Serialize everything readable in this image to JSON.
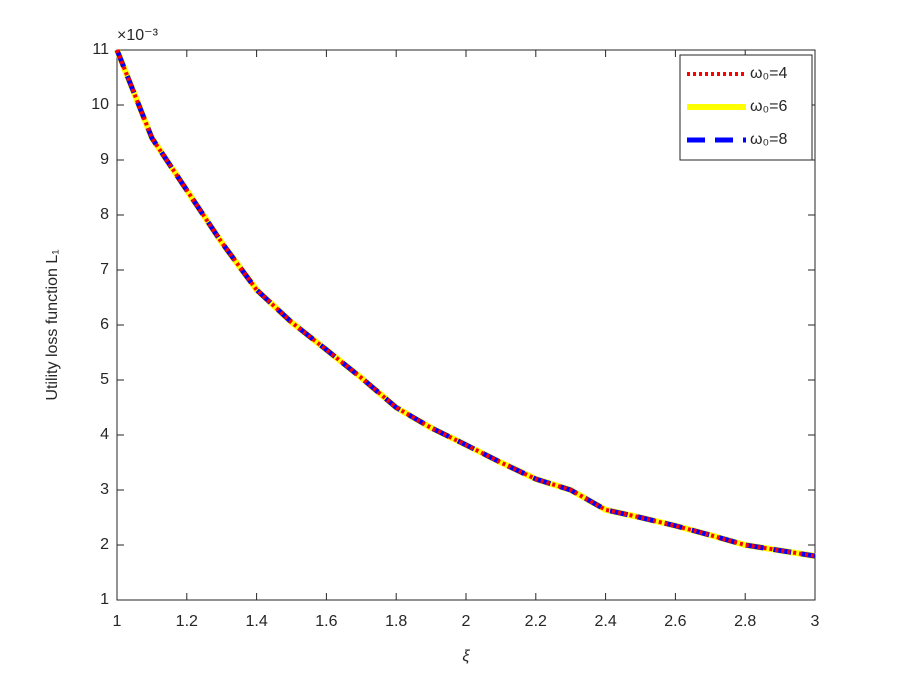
{
  "chart_data": {
    "type": "line",
    "x": [
      1,
      1.1,
      1.2,
      1.3,
      1.4,
      1.5,
      1.6,
      1.7,
      1.8,
      1.9,
      2,
      2.1,
      2.2,
      2.3,
      2.4,
      2.5,
      2.6,
      2.7,
      2.8,
      2.9,
      3
    ],
    "series": [
      {
        "name": "ω₀=4",
        "color": "#ff0000",
        "dash": "3,3",
        "width": 4,
        "values": [
          11,
          9.4,
          8.45,
          7.5,
          6.64,
          6.05,
          5.55,
          5.04,
          4.5,
          4.13,
          3.82,
          3.5,
          3.2,
          3.0,
          2.64,
          2.5,
          2.35,
          2.18,
          2.0,
          1.9,
          1.8
        ]
      },
      {
        "name": "ω₀=6",
        "color": "#ffff00",
        "dash": "none",
        "width": 6,
        "values": [
          11,
          9.4,
          8.45,
          7.5,
          6.64,
          6.05,
          5.55,
          5.04,
          4.5,
          4.13,
          3.82,
          3.5,
          3.2,
          3.0,
          2.64,
          2.5,
          2.35,
          2.18,
          2.0,
          1.9,
          1.8
        ]
      },
      {
        "name": "ω₀=8",
        "color": "#0000ff",
        "dash": "18,10",
        "width": 5,
        "values": [
          11,
          9.4,
          8.45,
          7.5,
          6.64,
          6.05,
          5.55,
          5.04,
          4.5,
          4.13,
          3.82,
          3.5,
          3.2,
          3.0,
          2.64,
          2.5,
          2.35,
          2.18,
          2.0,
          1.9,
          1.8
        ]
      }
    ],
    "x_label": "ξ",
    "y_label": "Utility loss function L₁",
    "y_multiplier": "×10⁻³",
    "xlim": [
      1,
      3
    ],
    "xticks": [
      1,
      1.2,
      1.4,
      1.6,
      1.8,
      2,
      2.2,
      2.4,
      2.6,
      2.8,
      3
    ],
    "ylim": [
      1,
      11
    ],
    "yticks": [
      1,
      2,
      3,
      4,
      5,
      6,
      7,
      8,
      9,
      10,
      11
    ],
    "legend": "upper right"
  }
}
